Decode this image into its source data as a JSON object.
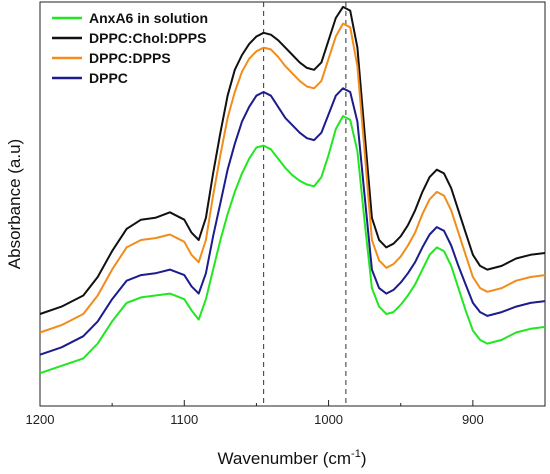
{
  "chart_data": {
    "type": "line",
    "xlabel": "Wavenumber (cm",
    "xlabel_sup": "-1",
    "xlabel_end": ")",
    "ylabel": "Absorbance (a.u)",
    "xlim": [
      1200,
      850
    ],
    "ylim": [
      0,
      1
    ],
    "x_reversed": true,
    "y_tick_labels_shown": false,
    "x_ticks": [
      1200,
      1100,
      1000,
      900
    ],
    "x_tick_labels": [
      "1200",
      "1100",
      "1000",
      "900"
    ],
    "reference_lines_x": [
      1045,
      988
    ],
    "legend_position": "top-left",
    "series": [
      {
        "name": "AnxA6 in solution",
        "color": "#22e622",
        "x": [
          1200,
          1185,
          1170,
          1160,
          1150,
          1140,
          1130,
          1120,
          1110,
          1100,
          1095,
          1090,
          1085,
          1080,
          1075,
          1070,
          1065,
          1060,
          1055,
          1050,
          1045,
          1040,
          1035,
          1030,
          1025,
          1020,
          1015,
          1010,
          1005,
          1000,
          995,
          990,
          985,
          980,
          975,
          970,
          965,
          960,
          955,
          950,
          945,
          940,
          935,
          930,
          925,
          920,
          915,
          910,
          905,
          900,
          895,
          890,
          880,
          870,
          860,
          850
        ],
        "y": [
          0.04,
          0.06,
          0.08,
          0.12,
          0.18,
          0.23,
          0.245,
          0.25,
          0.255,
          0.24,
          0.21,
          0.185,
          0.24,
          0.32,
          0.4,
          0.47,
          0.53,
          0.58,
          0.62,
          0.65,
          0.655,
          0.645,
          0.62,
          0.595,
          0.575,
          0.56,
          0.55,
          0.545,
          0.57,
          0.63,
          0.7,
          0.735,
          0.725,
          0.64,
          0.45,
          0.27,
          0.22,
          0.2,
          0.205,
          0.225,
          0.25,
          0.28,
          0.32,
          0.36,
          0.38,
          0.37,
          0.33,
          0.27,
          0.21,
          0.155,
          0.13,
          0.12,
          0.13,
          0.15,
          0.16,
          0.165
        ]
      },
      {
        "name": "DPPC:Chol:DPPS",
        "color": "#111111",
        "x": [
          1200,
          1185,
          1170,
          1160,
          1150,
          1140,
          1130,
          1120,
          1110,
          1100,
          1095,
          1090,
          1085,
          1080,
          1075,
          1070,
          1065,
          1060,
          1055,
          1050,
          1045,
          1040,
          1035,
          1030,
          1025,
          1020,
          1015,
          1010,
          1005,
          1000,
          995,
          990,
          985,
          980,
          975,
          970,
          965,
          960,
          955,
          950,
          945,
          940,
          935,
          930,
          925,
          920,
          915,
          910,
          905,
          900,
          895,
          890,
          880,
          870,
          860,
          850
        ],
        "y": [
          0.2,
          0.22,
          0.25,
          0.3,
          0.37,
          0.43,
          0.455,
          0.46,
          0.475,
          0.455,
          0.42,
          0.4,
          0.46,
          0.58,
          0.69,
          0.79,
          0.86,
          0.9,
          0.93,
          0.95,
          0.96,
          0.955,
          0.94,
          0.92,
          0.9,
          0.88,
          0.865,
          0.86,
          0.88,
          0.94,
          1.0,
          1.03,
          1.02,
          0.92,
          0.69,
          0.46,
          0.4,
          0.38,
          0.39,
          0.41,
          0.44,
          0.48,
          0.53,
          0.57,
          0.59,
          0.58,
          0.54,
          0.48,
          0.42,
          0.36,
          0.33,
          0.32,
          0.33,
          0.35,
          0.36,
          0.365
        ]
      },
      {
        "name": "DPPC:DPPS",
        "color": "#f28c1a",
        "x": [
          1200,
          1185,
          1170,
          1160,
          1150,
          1140,
          1130,
          1120,
          1110,
          1100,
          1095,
          1090,
          1085,
          1080,
          1075,
          1070,
          1065,
          1060,
          1055,
          1050,
          1045,
          1040,
          1035,
          1030,
          1025,
          1020,
          1015,
          1010,
          1005,
          1000,
          995,
          990,
          985,
          980,
          975,
          970,
          965,
          960,
          955,
          950,
          945,
          940,
          935,
          930,
          925,
          920,
          915,
          910,
          905,
          900,
          895,
          890,
          880,
          870,
          860,
          850
        ],
        "y": [
          0.15,
          0.17,
          0.2,
          0.25,
          0.32,
          0.38,
          0.4,
          0.405,
          0.415,
          0.395,
          0.36,
          0.34,
          0.4,
          0.52,
          0.63,
          0.73,
          0.8,
          0.855,
          0.89,
          0.91,
          0.92,
          0.915,
          0.895,
          0.87,
          0.85,
          0.83,
          0.815,
          0.81,
          0.83,
          0.89,
          0.95,
          0.985,
          0.975,
          0.87,
          0.64,
          0.4,
          0.345,
          0.325,
          0.335,
          0.355,
          0.385,
          0.42,
          0.47,
          0.51,
          0.53,
          0.52,
          0.48,
          0.42,
          0.36,
          0.3,
          0.27,
          0.26,
          0.27,
          0.29,
          0.3,
          0.305
        ]
      },
      {
        "name": "DPPC",
        "color": "#1c1c8c",
        "x": [
          1200,
          1185,
          1170,
          1160,
          1150,
          1140,
          1130,
          1120,
          1110,
          1100,
          1095,
          1090,
          1085,
          1080,
          1075,
          1070,
          1065,
          1060,
          1055,
          1050,
          1045,
          1040,
          1035,
          1030,
          1025,
          1020,
          1015,
          1010,
          1005,
          1000,
          995,
          990,
          985,
          980,
          975,
          970,
          965,
          960,
          955,
          950,
          945,
          940,
          935,
          930,
          925,
          920,
          915,
          910,
          905,
          900,
          895,
          890,
          880,
          870,
          860,
          850
        ],
        "y": [
          0.09,
          0.11,
          0.14,
          0.18,
          0.24,
          0.29,
          0.305,
          0.31,
          0.32,
          0.305,
          0.275,
          0.255,
          0.31,
          0.41,
          0.5,
          0.59,
          0.66,
          0.72,
          0.76,
          0.79,
          0.8,
          0.79,
          0.76,
          0.73,
          0.71,
          0.69,
          0.675,
          0.67,
          0.69,
          0.74,
          0.79,
          0.81,
          0.8,
          0.72,
          0.52,
          0.32,
          0.27,
          0.255,
          0.265,
          0.285,
          0.31,
          0.34,
          0.38,
          0.415,
          0.435,
          0.425,
          0.385,
          0.33,
          0.28,
          0.23,
          0.205,
          0.195,
          0.205,
          0.22,
          0.23,
          0.235
        ]
      }
    ],
    "legend_order": [
      0,
      1,
      2,
      3
    ]
  }
}
